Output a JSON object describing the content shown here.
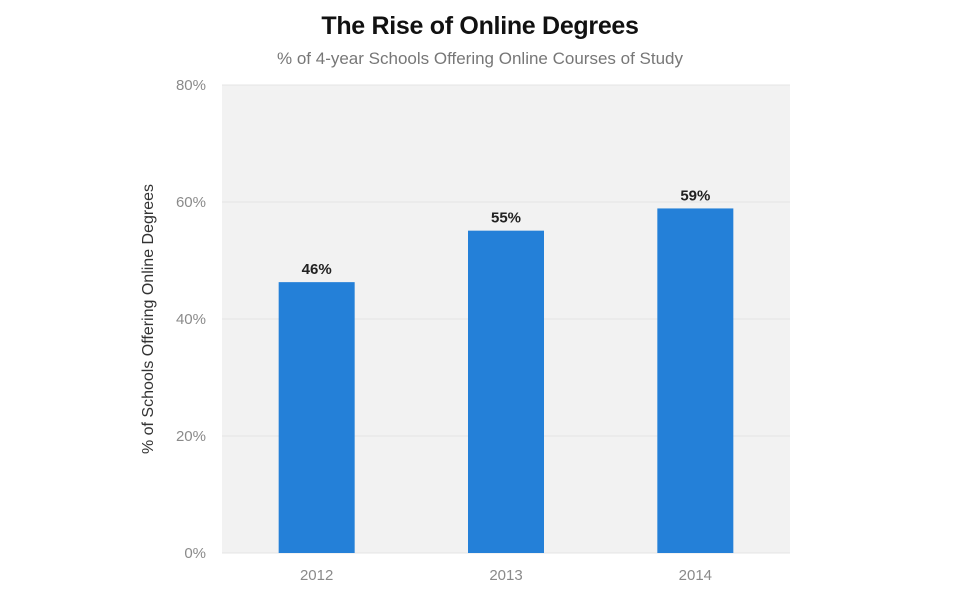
{
  "chart_data": {
    "type": "bar",
    "title": "The Rise of Online Degrees",
    "subtitle": "% of 4-year Schools Offering Online Courses of Study",
    "xlabel": "",
    "ylabel": "% of Schools Offering Online Degrees",
    "categories": [
      "2012",
      "2013",
      "2014"
    ],
    "values": [
      46.3,
      55.1,
      58.9
    ],
    "data_labels": [
      "46%",
      "55%",
      "59%"
    ],
    "ylim": [
      0,
      80
    ],
    "yticks": [
      0,
      20,
      40,
      60,
      80
    ],
    "ytick_labels": [
      "0%",
      "20%",
      "40%",
      "60%",
      "80%"
    ],
    "grid": true,
    "legend": "none",
    "colors": {
      "bar": "#2480d8",
      "plot_background": "#f2f2f2",
      "gridline": "#e4e4e4"
    }
  }
}
